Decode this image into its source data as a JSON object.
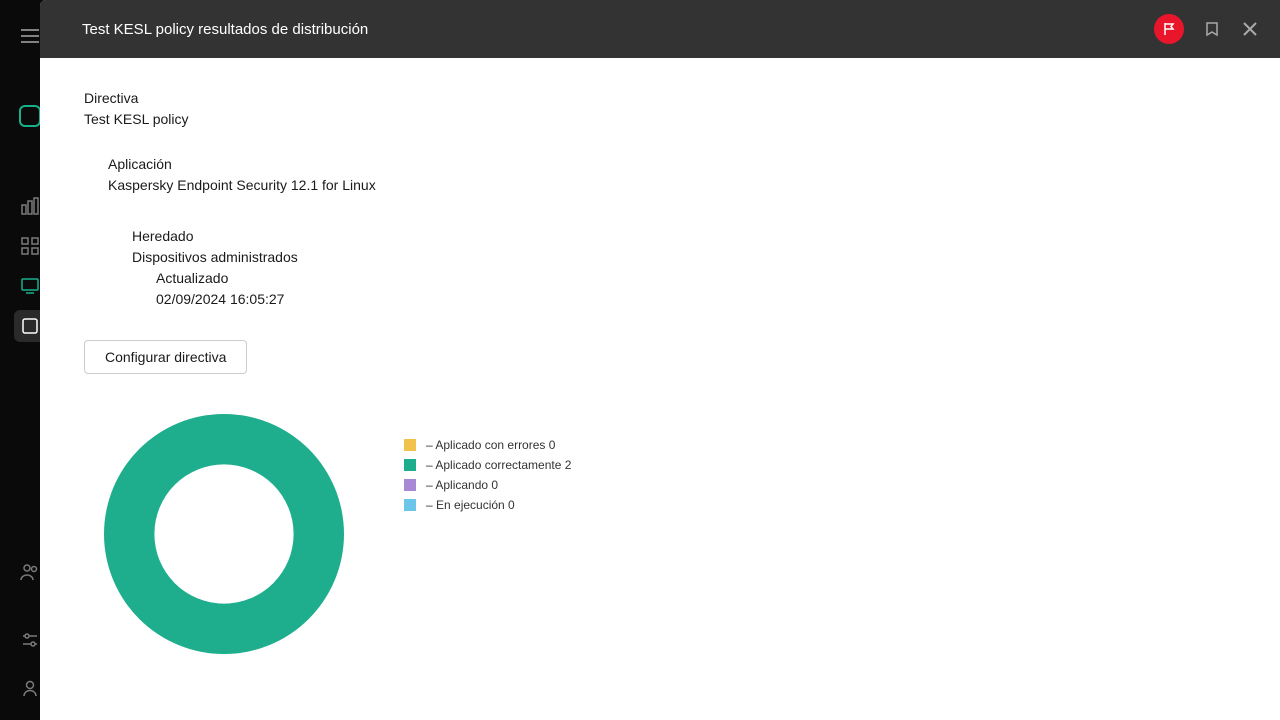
{
  "header": {
    "title": "Test KESL policy resultados de distribución"
  },
  "info": {
    "directive_label": "Directiva",
    "directive_value": "Test KESL policy",
    "application_label": "Aplicación",
    "application_value": "Kaspersky Endpoint Security 12.1 for Linux",
    "inherited_label": "Heredado",
    "inherited_value": "Dispositivos administrados",
    "updated_label": "Actualizado",
    "updated_value": "02/09/2024 16:05:27"
  },
  "actions": {
    "configure_label": "Configurar directiva"
  },
  "chart": {
    "type": "donut",
    "inner_radius": 0.58,
    "background_color": "#ffffff",
    "series": [
      {
        "label": "Aplicado con errores",
        "value": 0,
        "color": "#f2c34c"
      },
      {
        "label": "Aplicado correctamente",
        "value": 2,
        "color": "#1fae8d"
      },
      {
        "label": "Aplicando",
        "value": 0,
        "color": "#a889d6"
      },
      {
        "label": "En ejecución",
        "value": 0,
        "color": "#6cc6ea"
      }
    ],
    "legend_prefix": "– ",
    "legend_fontsize": 12
  },
  "colors": {
    "sidebar_bg": "#0a0a0a",
    "header_bg": "#333333",
    "flag_bg": "#e8152b",
    "accent": "#18b08a"
  }
}
